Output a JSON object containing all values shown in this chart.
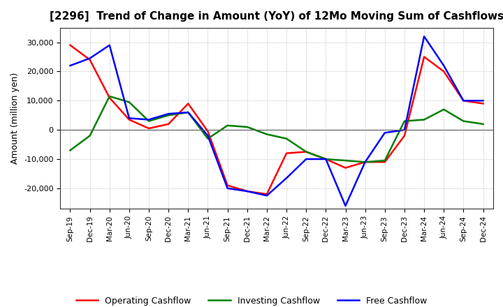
{
  "title": "[2296]  Trend of Change in Amount (YoY) of 12Mo Moving Sum of Cashflows",
  "ylabel": "Amount (million yen)",
  "x_labels": [
    "Sep-19",
    "Dec-19",
    "Mar-20",
    "Jun-20",
    "Sep-20",
    "Dec-20",
    "Mar-21",
    "Jun-21",
    "Sep-21",
    "Dec-21",
    "Mar-22",
    "Jun-22",
    "Sep-22",
    "Dec-22",
    "Mar-23",
    "Jun-23",
    "Sep-23",
    "Dec-23",
    "Mar-24",
    "Jun-24",
    "Sep-24",
    "Dec-24"
  ],
  "operating": [
    29000,
    24000,
    11000,
    3500,
    500,
    2000,
    9000,
    -500,
    -19000,
    -21000,
    -22000,
    -8000,
    -7500,
    -10000,
    -13000,
    -11000,
    -11000,
    -2000,
    25000,
    20000,
    10000,
    9000
  ],
  "investing": [
    -7000,
    -2000,
    11500,
    9500,
    3000,
    5000,
    6000,
    -3000,
    1500,
    1000,
    -1500,
    -3000,
    -7500,
    -10000,
    -10500,
    -11000,
    -10500,
    3000,
    3500,
    7000,
    3000,
    2000
  ],
  "free": [
    22000,
    24500,
    29000,
    4000,
    3500,
    5500,
    6000,
    -2000,
    -20000,
    -21000,
    -22500,
    -16500,
    -10000,
    -10000,
    -26000,
    -11000,
    -1000,
    0,
    32000,
    22000,
    10000,
    10000
  ],
  "operating_color": "#ff0000",
  "investing_color": "#008000",
  "free_color": "#0000ff",
  "ylim": [
    -27000,
    35000
  ],
  "yticks": [
    -20000,
    -10000,
    0,
    10000,
    20000,
    30000
  ],
  "background_color": "#ffffff",
  "grid_color": "#999999"
}
